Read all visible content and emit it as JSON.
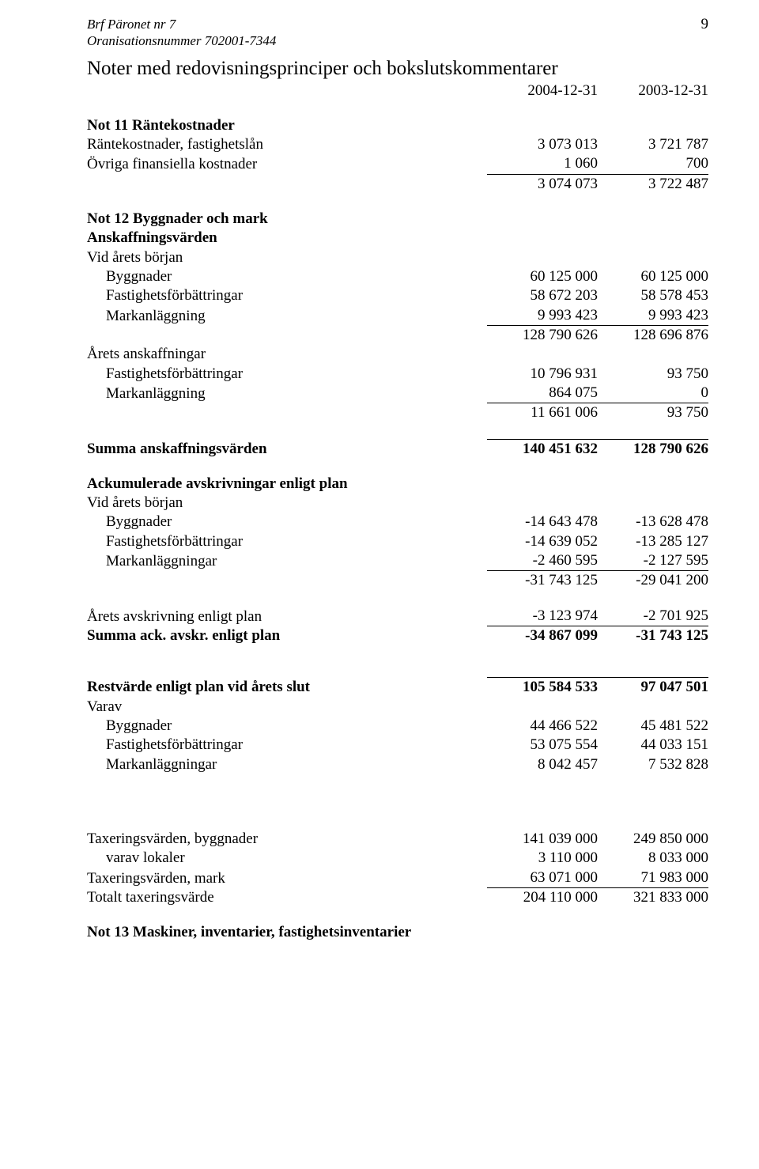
{
  "header": {
    "line1": "Brf Päronet nr 7",
    "line2": "Oranisationsnummer 702001-7344",
    "page_number": "9"
  },
  "title": "Noter med redovisningsprinciper och bokslutskommentarer",
  "years": {
    "col1": "2004-12-31",
    "col2": "2003-12-31"
  },
  "not11": {
    "heading": "Not 11   Räntekostnader",
    "rows": [
      {
        "label": "Räntekostnader, fastighetslån",
        "c1": "3 073 013",
        "c2": "3 721 787"
      },
      {
        "label": "Övriga finansiella kostnader",
        "c1": "1 060",
        "c2": "700"
      }
    ],
    "total": {
      "c1": "3 074 073",
      "c2": "3 722 487"
    }
  },
  "not12": {
    "heading": "Not 12   Byggnader och mark",
    "ansk_heading": "Anskaffningsvärden",
    "vid_arets_borjan": "Vid årets början",
    "vab_rows": [
      {
        "label": "Byggnader",
        "c1": "60 125 000",
        "c2": "60 125 000"
      },
      {
        "label": "Fastighetsförbättringar",
        "c1": "58 672 203",
        "c2": "58 578 453"
      },
      {
        "label": "Markanläggning",
        "c1": "9 993 423",
        "c2": "9 993 423"
      }
    ],
    "vab_subtotal": {
      "c1": "128 790 626",
      "c2": "128 696 876"
    },
    "arets_ansk_heading": "Årets anskaffningar",
    "arets_rows": [
      {
        "label": "Fastighetsförbättringar",
        "c1": "10 796 931",
        "c2": "93 750"
      },
      {
        "label": "Markanläggning",
        "c1": "864 075",
        "c2": "0"
      }
    ],
    "arets_subtotal": {
      "c1": "11 661 006",
      "c2": "93 750"
    },
    "summa_ansk": {
      "label": "Summa anskaffningsvärden",
      "c1": "140 451 632",
      "c2": "128 790 626"
    },
    "ack_heading": "Ackumulerade avskrivningar enligt plan",
    "ack_vab_rows": [
      {
        "label": "Byggnader",
        "c1": "-14 643 478",
        "c2": "-13 628 478"
      },
      {
        "label": "Fastighetsförbättringar",
        "c1": "-14 639 052",
        "c2": "-13 285 127"
      },
      {
        "label": "Markanläggningar",
        "c1": "-2 460 595",
        "c2": "-2 127 595"
      }
    ],
    "ack_subtotal": {
      "c1": "-31 743 125",
      "c2": "-29 041 200"
    },
    "arets_avskr": {
      "label": "Årets avskrivning enligt plan",
      "c1": "-3 123 974",
      "c2": "-2 701 925"
    },
    "summa_ack": {
      "label": "Summa ack. avskr. enligt plan",
      "c1": "-34 867 099",
      "c2": "-31 743 125"
    },
    "restvarde": {
      "label": "Restvärde enligt plan vid årets slut",
      "c1": "105 584 533",
      "c2": "97 047 501"
    },
    "varav_label": "Varav",
    "varav_rows": [
      {
        "label": "Byggnader",
        "c1": "44 466 522",
        "c2": "45 481 522"
      },
      {
        "label": "Fastighetsförbättringar",
        "c1": "53 075 554",
        "c2": "44 033 151"
      },
      {
        "label": "Markanläggningar",
        "c1": "8 042 457",
        "c2": "7 532 828"
      }
    ],
    "tax_rows": [
      {
        "label": "Taxeringsvärden, byggnader",
        "c1": "141 039 000",
        "c2": "249 850 000"
      },
      {
        "label": "varav lokaler",
        "c1": "3 110 000",
        "c2": "8 033 000",
        "indent": true
      },
      {
        "label": "Taxeringsvärden, mark",
        "c1": "63 071 000",
        "c2": "71 983 000"
      },
      {
        "label": "Totalt taxeringsvärde",
        "c1": "204 110 000",
        "c2": "321 833 000"
      }
    ]
  },
  "not13": {
    "heading": "Not 13   Maskiner, inventarier, fastighetsinventarier"
  }
}
